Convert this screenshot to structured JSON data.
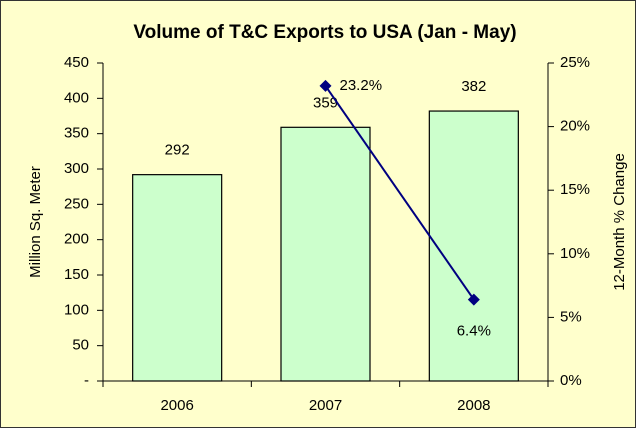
{
  "chart_data": {
    "type": "bar_line",
    "title": "Volume of T&C Exports to USA (Jan - May)",
    "categories": [
      "2006",
      "2007",
      "2008"
    ],
    "series": [
      {
        "type": "bar",
        "color": "#ccffcc",
        "values": [
          292,
          359,
          382
        ]
      },
      {
        "type": "line",
        "color": "#000080",
        "axis": "y2",
        "values": [
          null,
          23.2,
          6.4
        ],
        "value_labels": [
          null,
          "23.2%",
          "6.4%"
        ]
      }
    ],
    "ylabel": "Million Sq. Meter",
    "y2label": "12-Month % Change",
    "ylim": [
      0,
      450
    ],
    "yticks": [
      {
        "value": 0,
        "label": "-"
      },
      50,
      100,
      150,
      200,
      250,
      300,
      350,
      400,
      450
    ],
    "y2lim": [
      0,
      25
    ],
    "y2ticks": [
      {
        "value": 0,
        "label": "0%"
      },
      {
        "value": 5,
        "label": "5%"
      },
      {
        "value": 10,
        "label": "10%"
      },
      {
        "value": 15,
        "label": "15%"
      },
      {
        "value": 20,
        "label": "20%"
      },
      {
        "value": 25,
        "label": "25%"
      }
    ],
    "grid": false
  }
}
